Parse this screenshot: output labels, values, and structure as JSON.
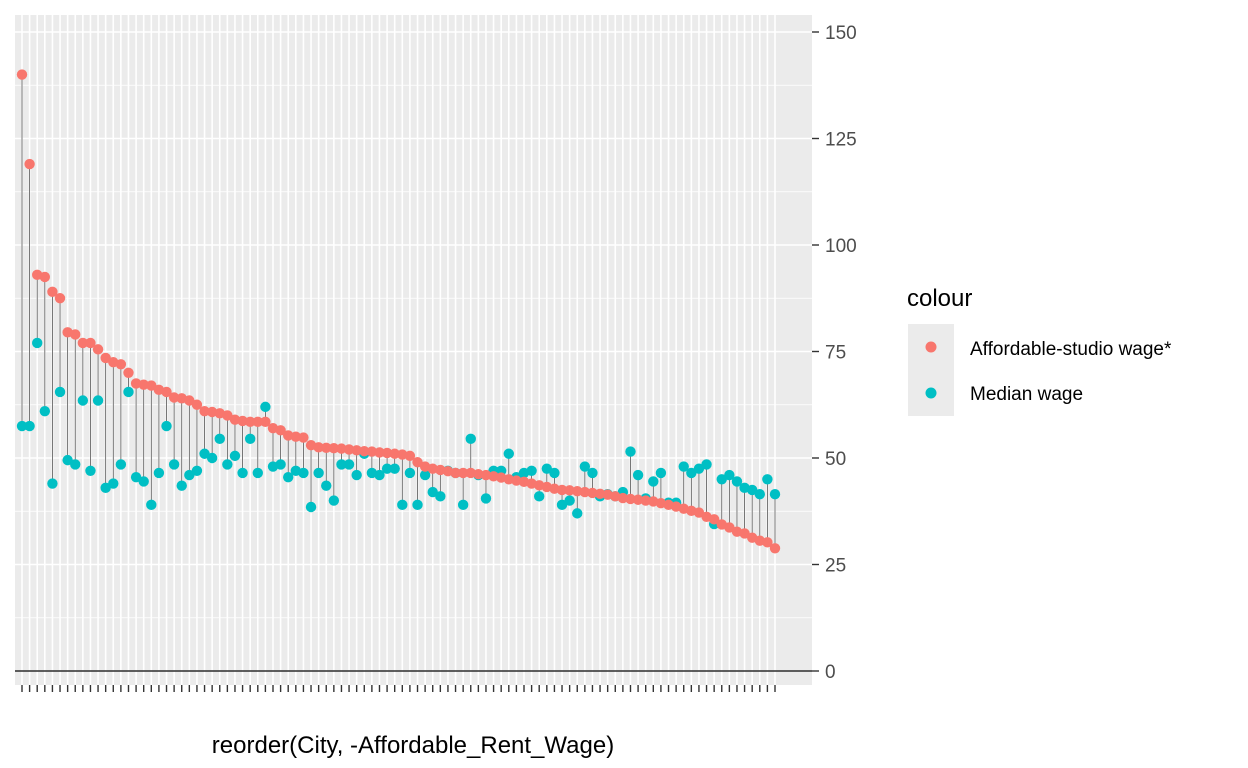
{
  "chart_data": {
    "type": "scatter",
    "subtype": "dumbbell / lollipop",
    "xlabel": "reorder(City, -Affordable_Rent_Wage)",
    "ylabel": "",
    "ylim": [
      0,
      150
    ],
    "yticks": [
      0,
      25,
      50,
      75,
      100,
      125,
      150
    ],
    "y_axis_position": "right",
    "grid": true,
    "legend": {
      "title": "colour",
      "placement": "right",
      "entries": [
        {
          "label": "Affordable-studio wage*",
          "color": "#F8766D"
        },
        {
          "label": "Median wage",
          "color": "#00BFC4"
        }
      ]
    },
    "category_count": 100,
    "series": [
      {
        "name": "Affordable-studio wage*",
        "color": "#F8766D",
        "values": [
          140,
          119,
          93,
          92.5,
          89,
          87.5,
          79.5,
          79,
          77,
          77,
          75.5,
          73.5,
          72.5,
          72,
          70,
          67.5,
          67.2,
          67,
          66,
          65.5,
          64.2,
          64,
          63.5,
          62.5,
          61,
          60.8,
          60.5,
          60,
          59,
          58.7,
          58.5,
          58.5,
          58.5,
          57,
          56.5,
          55.3,
          55,
          54.8,
          53,
          52.5,
          52.4,
          52.3,
          52.2,
          52,
          51.8,
          51.6,
          51.5,
          51.3,
          51.2,
          51,
          50.8,
          50.5,
          49,
          48,
          47.5,
          47.2,
          46.9,
          46.5,
          46.5,
          46.5,
          46.2,
          46,
          45.7,
          45.4,
          45,
          44.7,
          44.4,
          44,
          43.6,
          43.2,
          42.8,
          42.5,
          42.4,
          42.2,
          42,
          41.8,
          41.6,
          41.4,
          41,
          40.6,
          40.4,
          40.2,
          40,
          39.8,
          39.4,
          39,
          38.6,
          38.1,
          37.6,
          37.2,
          36.2,
          35.6,
          34.4,
          33.7,
          32.7,
          32.3,
          31.3,
          30.6,
          30.2,
          28.8
        ]
      },
      {
        "name": "Median wage",
        "color": "#00BFC4",
        "values": [
          57.5,
          57.5,
          77,
          61,
          44,
          65.5,
          49.5,
          48.5,
          63.5,
          47,
          63.5,
          43,
          44,
          48.5,
          65.5,
          45.5,
          44.5,
          39,
          46.5,
          57.5,
          48.5,
          43.5,
          46,
          47,
          51,
          50,
          54.5,
          48.5,
          50.5,
          46.5,
          54.5,
          46.5,
          62,
          48,
          48.5,
          45.5,
          47,
          46.5,
          38.5,
          46.5,
          43.5,
          40,
          48.5,
          48.5,
          46,
          51,
          46.5,
          46,
          47.5,
          47.5,
          39,
          46.5,
          39,
          46,
          42,
          41,
          47,
          46.5,
          39,
          54.5,
          46,
          40.5,
          47,
          47,
          51,
          45.5,
          46.5,
          47,
          41,
          47.5,
          46.5,
          39,
          40,
          37,
          48,
          46.5,
          41,
          41.5,
          41,
          42,
          51.5,
          46,
          40.5,
          44.5,
          46.5,
          39.5,
          39.5,
          48,
          46.5,
          47.5,
          48.5,
          34.5,
          45,
          46,
          44.5,
          43,
          42.5,
          41.5,
          45,
          41.5
        ]
      }
    ]
  }
}
